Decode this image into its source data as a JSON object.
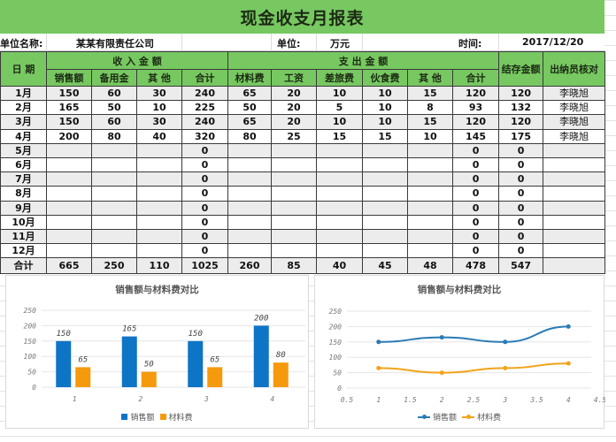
{
  "title": "现金收支月报表",
  "info": {
    "company_label": "单位名称:",
    "company_value": "某某有限责任公司",
    "unit_label": "单位:",
    "unit_value": "万元",
    "date_label": "时间:",
    "date_value": "2017/12/20"
  },
  "table": {
    "header_date": "日 期",
    "group_income": "收 入 金 额",
    "group_expense": "支 出 金 额",
    "header_balance": "结存金额",
    "header_cashier": "出纳员核对",
    "income_cols": [
      "销售额",
      "备用金",
      "其 他",
      "合计"
    ],
    "expense_cols": [
      "材料费",
      "工资",
      "差旅费",
      "伙食费",
      "其 他",
      "合计"
    ],
    "rows": [
      {
        "month": "1月",
        "sales": "150",
        "reserve": "60",
        "other_in": "30",
        "income_total": "240",
        "material": "65",
        "salary": "20",
        "travel": "10",
        "meals": "10",
        "other_out": "15",
        "expense_total": "120",
        "balance": "120",
        "cashier": "李晓旭"
      },
      {
        "month": "2月",
        "sales": "165",
        "reserve": "50",
        "other_in": "10",
        "income_total": "225",
        "material": "50",
        "salary": "20",
        "travel": "5",
        "meals": "10",
        "other_out": "8",
        "expense_total": "93",
        "balance": "132",
        "cashier": "李晓旭"
      },
      {
        "month": "3月",
        "sales": "150",
        "reserve": "60",
        "other_in": "30",
        "income_total": "240",
        "material": "65",
        "salary": "20",
        "travel": "10",
        "meals": "10",
        "other_out": "15",
        "expense_total": "120",
        "balance": "120",
        "cashier": "李晓旭"
      },
      {
        "month": "4月",
        "sales": "200",
        "reserve": "80",
        "other_in": "40",
        "income_total": "320",
        "material": "80",
        "salary": "25",
        "travel": "15",
        "meals": "15",
        "other_out": "10",
        "expense_total": "145",
        "balance": "175",
        "cashier": "李晓旭"
      },
      {
        "month": "5月",
        "sales": "",
        "reserve": "",
        "other_in": "",
        "income_total": "0",
        "material": "",
        "salary": "",
        "travel": "",
        "meals": "",
        "other_out": "",
        "expense_total": "0",
        "balance": "0",
        "cashier": ""
      },
      {
        "month": "6月",
        "sales": "",
        "reserve": "",
        "other_in": "",
        "income_total": "0",
        "material": "",
        "salary": "",
        "travel": "",
        "meals": "",
        "other_out": "",
        "expense_total": "0",
        "balance": "0",
        "cashier": ""
      },
      {
        "month": "7月",
        "sales": "",
        "reserve": "",
        "other_in": "",
        "income_total": "0",
        "material": "",
        "salary": "",
        "travel": "",
        "meals": "",
        "other_out": "",
        "expense_total": "0",
        "balance": "0",
        "cashier": ""
      },
      {
        "month": "8月",
        "sales": "",
        "reserve": "",
        "other_in": "",
        "income_total": "0",
        "material": "",
        "salary": "",
        "travel": "",
        "meals": "",
        "other_out": "",
        "expense_total": "0",
        "balance": "0",
        "cashier": ""
      },
      {
        "month": "9月",
        "sales": "",
        "reserve": "",
        "other_in": "",
        "income_total": "0",
        "material": "",
        "salary": "",
        "travel": "",
        "meals": "",
        "other_out": "",
        "expense_total": "0",
        "balance": "0",
        "cashier": ""
      },
      {
        "month": "10月",
        "sales": "",
        "reserve": "",
        "other_in": "",
        "income_total": "0",
        "material": "",
        "salary": "",
        "travel": "",
        "meals": "",
        "other_out": "",
        "expense_total": "0",
        "balance": "0",
        "cashier": ""
      },
      {
        "month": "11月",
        "sales": "",
        "reserve": "",
        "other_in": "",
        "income_total": "0",
        "material": "",
        "salary": "",
        "travel": "",
        "meals": "",
        "other_out": "",
        "expense_total": "0",
        "balance": "0",
        "cashier": ""
      },
      {
        "month": "12月",
        "sales": "",
        "reserve": "",
        "other_in": "",
        "income_total": "0",
        "material": "",
        "salary": "",
        "travel": "",
        "meals": "",
        "other_out": "",
        "expense_total": "0",
        "balance": "0",
        "cashier": ""
      }
    ],
    "total": {
      "month": "合计",
      "sales": "665",
      "reserve": "250",
      "other_in": "110",
      "income_total": "1025",
      "material": "260",
      "salary": "85",
      "travel": "40",
      "meals": "45",
      "other_out": "48",
      "expense_total": "478",
      "balance": "547",
      "cashier": ""
    }
  },
  "colors": {
    "header_green": "#77c861",
    "sales_blue": "#0e74c6",
    "material_orange": "#f59a0c",
    "line_blue": "#2a7bb5",
    "line_orange": "#f2a31b"
  },
  "chart_data": [
    {
      "type": "bar",
      "title": "销售额与材料费对比",
      "categories": [
        "1",
        "2",
        "3",
        "4"
      ],
      "series": [
        {
          "name": "销售额",
          "values": [
            150,
            165,
            150,
            200
          ]
        },
        {
          "name": "材料费",
          "values": [
            65,
            50,
            65,
            80
          ]
        }
      ],
      "yticks": [
        "0",
        "50",
        "100",
        "150",
        "200",
        "250"
      ],
      "ylim": [
        0,
        250
      ],
      "xlabel": "",
      "ylabel": "",
      "grid": true,
      "legend_position": "bottom"
    },
    {
      "type": "line",
      "title": "销售额与材料费对比",
      "x": [
        1,
        2,
        3,
        4
      ],
      "series": [
        {
          "name": "销售额",
          "values": [
            150,
            165,
            150,
            200
          ]
        },
        {
          "name": "材料费",
          "values": [
            65,
            50,
            65,
            80
          ]
        }
      ],
      "xticks": [
        "0.5",
        "1",
        "1.5",
        "2",
        "2.5",
        "3",
        "3.5",
        "4",
        "4.5"
      ],
      "yticks": [
        "0",
        "50",
        "100",
        "150",
        "200",
        "250"
      ],
      "xlim": [
        0.5,
        4.5
      ],
      "ylim": [
        0,
        250
      ],
      "xlabel": "",
      "ylabel": "",
      "grid": true,
      "legend_position": "bottom"
    }
  ]
}
